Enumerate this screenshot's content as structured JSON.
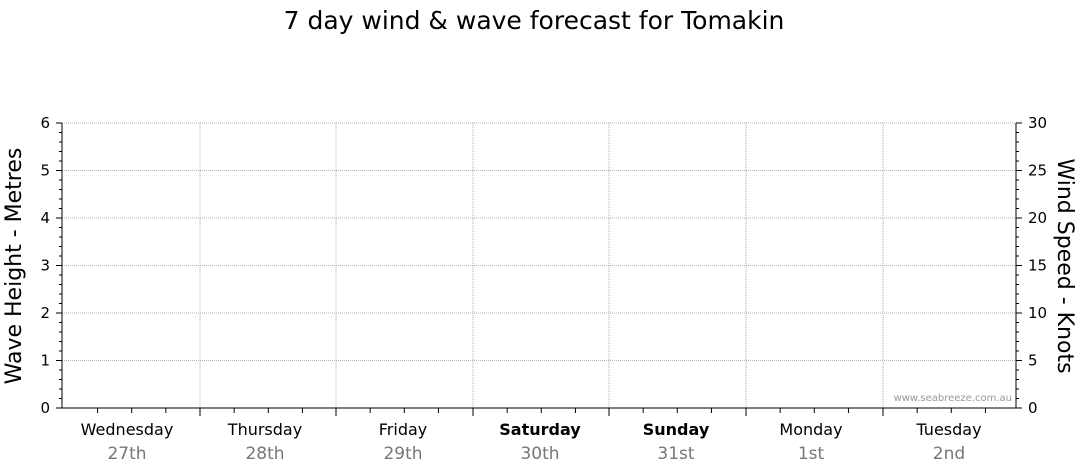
{
  "chart_data": {
    "type": "line",
    "title": "7 day wind & wave forecast for Tomakin",
    "ylabel_left": "Wave Height - Metres",
    "ylabel_right": "Wind Speed - Knots",
    "ylim_left": [
      0,
      6
    ],
    "ylim_right": [
      0,
      30
    ],
    "yticks_left": [
      "0",
      "1",
      "2",
      "3",
      "4",
      "5",
      "6"
    ],
    "yticks_right": [
      "0",
      "5",
      "10",
      "15",
      "20",
      "25",
      "30"
    ],
    "days": [
      {
        "name": "Wednesday",
        "date": "27th",
        "bold": false
      },
      {
        "name": "Thursday",
        "date": "28th",
        "bold": false
      },
      {
        "name": "Friday",
        "date": "29th",
        "bold": false
      },
      {
        "name": "Saturday",
        "date": "30th",
        "bold": true
      },
      {
        "name": "Sunday",
        "date": "31st",
        "bold": true
      },
      {
        "name": "Monday",
        "date": "1st",
        "bold": false
      },
      {
        "name": "Tuesday",
        "date": "2nd",
        "bold": false
      }
    ],
    "series": [],
    "grid": true,
    "watermark": "www.seabreeze.com.au"
  }
}
